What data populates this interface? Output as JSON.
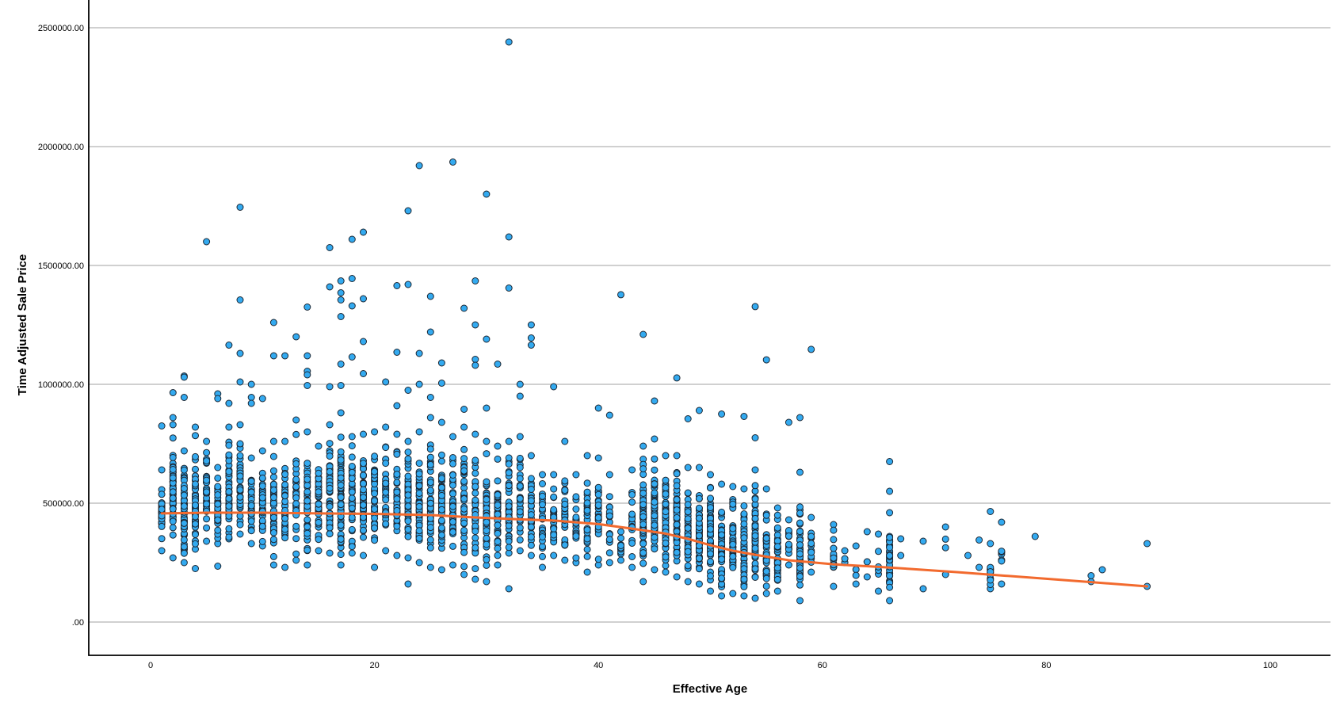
{
  "chart_data": {
    "type": "scatter",
    "title": "",
    "xlabel": "Effective Age",
    "ylabel": "Time Adjusted Sale Price",
    "xlim": [
      -10,
      106
    ],
    "ylim": [
      -140000,
      2620000
    ],
    "x_ticks": [
      0,
      20,
      40,
      60,
      80,
      100
    ],
    "x_tick_labels": [
      "0",
      "20",
      "40",
      "60",
      "80",
      "100"
    ],
    "y_ticks": [
      0,
      500000,
      1000000,
      1500000,
      2000000,
      2500000
    ],
    "y_tick_labels": [
      ".00",
      "500000.00",
      "1000000.00",
      "1500000.00",
      "2000000.00",
      "2500000.00"
    ],
    "grid": {
      "horizontal": true,
      "vertical": false
    },
    "legend": null,
    "colors": {
      "point_fill": "#33aaf0",
      "point_stroke": "#1c2733",
      "fit_line": "#f26a2e",
      "gridline": "#b4b4b4",
      "axis": "#000000"
    },
    "fit_line": {
      "type": "loess",
      "x": [
        1,
        5,
        10,
        15,
        20,
        25,
        29,
        33,
        36,
        40,
        43,
        46,
        48,
        50,
        52,
        54,
        57,
        61,
        65,
        68,
        72,
        76,
        80,
        84,
        89
      ],
      "y": [
        457000,
        460000,
        460000,
        457000,
        455000,
        450000,
        440000,
        432000,
        427000,
        412000,
        393000,
        372000,
        350000,
        323000,
        300000,
        283000,
        260000,
        243000,
        232000,
        223000,
        210000,
        196000,
        182000,
        168000,
        150000
      ]
    },
    "columns": [
      {
        "x": 1,
        "min": 300000,
        "max": 640000,
        "n": 30
      },
      {
        "x": 2,
        "min": 270000,
        "max": 860000,
        "n": 55
      },
      {
        "x": 3,
        "min": 250000,
        "max": 720000,
        "n": 60
      },
      {
        "x": 4,
        "min": 225000,
        "max": 820000,
        "n": 45
      },
      {
        "x": 5,
        "min": 340000,
        "max": 760000,
        "n": 40
      },
      {
        "x": 6,
        "min": 330000,
        "max": 650000,
        "n": 35
      },
      {
        "x": 7,
        "min": 350000,
        "max": 820000,
        "n": 40
      },
      {
        "x": 8,
        "min": 370000,
        "max": 830000,
        "n": 45
      },
      {
        "x": 9,
        "min": 330000,
        "max": 690000,
        "n": 30
      },
      {
        "x": 10,
        "min": 320000,
        "max": 720000,
        "n": 40
      },
      {
        "x": 11,
        "min": 240000,
        "max": 760000,
        "n": 40
      },
      {
        "x": 12,
        "min": 230000,
        "max": 760000,
        "n": 35
      },
      {
        "x": 13,
        "min": 260000,
        "max": 850000,
        "n": 35
      },
      {
        "x": 14,
        "min": 240000,
        "max": 800000,
        "n": 45
      },
      {
        "x": 15,
        "min": 300000,
        "max": 740000,
        "n": 40
      },
      {
        "x": 16,
        "min": 290000,
        "max": 830000,
        "n": 50
      },
      {
        "x": 17,
        "min": 240000,
        "max": 880000,
        "n": 60
      },
      {
        "x": 18,
        "min": 290000,
        "max": 780000,
        "n": 50
      },
      {
        "x": 19,
        "min": 280000,
        "max": 790000,
        "n": 50
      },
      {
        "x": 20,
        "min": 230000,
        "max": 800000,
        "n": 40
      },
      {
        "x": 21,
        "min": 300000,
        "max": 820000,
        "n": 35
      },
      {
        "x": 22,
        "min": 280000,
        "max": 790000,
        "n": 40
      },
      {
        "x": 23,
        "min": 270000,
        "max": 760000,
        "n": 45
      },
      {
        "x": 24,
        "min": 250000,
        "max": 800000,
        "n": 45
      },
      {
        "x": 25,
        "min": 230000,
        "max": 860000,
        "n": 50
      },
      {
        "x": 26,
        "min": 220000,
        "max": 840000,
        "n": 45
      },
      {
        "x": 27,
        "min": 240000,
        "max": 780000,
        "n": 45
      },
      {
        "x": 28,
        "min": 200000,
        "max": 820000,
        "n": 40
      },
      {
        "x": 29,
        "min": 180000,
        "max": 790000,
        "n": 40
      },
      {
        "x": 30,
        "min": 170000,
        "max": 760000,
        "n": 50
      },
      {
        "x": 31,
        "min": 240000,
        "max": 740000,
        "n": 40
      },
      {
        "x": 32,
        "min": 290000,
        "max": 760000,
        "n": 40
      },
      {
        "x": 33,
        "min": 300000,
        "max": 780000,
        "n": 35
      },
      {
        "x": 34,
        "min": 280000,
        "max": 700000,
        "n": 30
      },
      {
        "x": 35,
        "min": 230000,
        "max": 620000,
        "n": 25
      },
      {
        "x": 36,
        "min": 280000,
        "max": 620000,
        "n": 25
      },
      {
        "x": 37,
        "min": 260000,
        "max": 760000,
        "n": 30
      },
      {
        "x": 38,
        "min": 250000,
        "max": 620000,
        "n": 25
      },
      {
        "x": 39,
        "min": 210000,
        "max": 700000,
        "n": 30
      },
      {
        "x": 40,
        "min": 240000,
        "max": 690000,
        "n": 25
      },
      {
        "x": 41,
        "min": 250000,
        "max": 620000,
        "n": 20
      },
      {
        "x": 42,
        "min": 260000,
        "max": 380000,
        "n": 12
      },
      {
        "x": 43,
        "min": 230000,
        "max": 640000,
        "n": 25
      },
      {
        "x": 44,
        "min": 170000,
        "max": 740000,
        "n": 60
      },
      {
        "x": 45,
        "min": 220000,
        "max": 770000,
        "n": 60
      },
      {
        "x": 46,
        "min": 210000,
        "max": 700000,
        "n": 55
      },
      {
        "x": 47,
        "min": 190000,
        "max": 700000,
        "n": 55
      },
      {
        "x": 48,
        "min": 170000,
        "max": 650000,
        "n": 50
      },
      {
        "x": 49,
        "min": 160000,
        "max": 650000,
        "n": 55
      },
      {
        "x": 50,
        "min": 130000,
        "max": 620000,
        "n": 55
      },
      {
        "x": 51,
        "min": 110000,
        "max": 580000,
        "n": 55
      },
      {
        "x": 52,
        "min": 120000,
        "max": 570000,
        "n": 50
      },
      {
        "x": 53,
        "min": 110000,
        "max": 560000,
        "n": 50
      },
      {
        "x": 54,
        "min": 100000,
        "max": 640000,
        "n": 55
      },
      {
        "x": 55,
        "min": 120000,
        "max": 560000,
        "n": 45
      },
      {
        "x": 56,
        "min": 130000,
        "max": 480000,
        "n": 40
      },
      {
        "x": 57,
        "min": 240000,
        "max": 430000,
        "n": 15
      },
      {
        "x": 58,
        "min": 90000,
        "max": 630000,
        "n": 55
      },
      {
        "x": 59,
        "min": 210000,
        "max": 440000,
        "n": 15
      },
      {
        "x": 61,
        "min": 150000,
        "max": 410000,
        "n": 18
      },
      {
        "x": 62,
        "min": 250000,
        "max": 300000,
        "n": 3
      },
      {
        "x": 63,
        "min": 160000,
        "max": 320000,
        "n": 4
      },
      {
        "x": 64,
        "min": 190000,
        "max": 380000,
        "n": 4
      },
      {
        "x": 65,
        "min": 130000,
        "max": 370000,
        "n": 6
      },
      {
        "x": 66,
        "min": 90000,
        "max": 460000,
        "n": 35
      },
      {
        "x": 67,
        "min": 280000,
        "max": 350000,
        "n": 2
      },
      {
        "x": 69,
        "min": 140000,
        "max": 340000,
        "n": 2
      },
      {
        "x": 71,
        "min": 200000,
        "max": 400000,
        "n": 4
      },
      {
        "x": 73,
        "min": 280000,
        "max": 280000,
        "n": 1
      },
      {
        "x": 74,
        "min": 230000,
        "max": 345000,
        "n": 2
      },
      {
        "x": 75,
        "min": 140000,
        "max": 330000,
        "n": 12
      },
      {
        "x": 76,
        "min": 160000,
        "max": 420000,
        "n": 8
      },
      {
        "x": 79,
        "min": 360000,
        "max": 360000,
        "n": 1
      },
      {
        "x": 84,
        "min": 170000,
        "max": 195000,
        "n": 2
      },
      {
        "x": 85,
        "min": 220000,
        "max": 220000,
        "n": 1
      },
      {
        "x": 89,
        "min": 150000,
        "max": 330000,
        "n": 2
      }
    ],
    "outliers": [
      {
        "x": 32,
        "y": 2440000
      },
      {
        "x": 27,
        "y": 1935000
      },
      {
        "x": 24,
        "y": 1920000
      },
      {
        "x": 30,
        "y": 1800000
      },
      {
        "x": 8,
        "y": 1745000
      },
      {
        "x": 23,
        "y": 1730000
      },
      {
        "x": 19,
        "y": 1640000
      },
      {
        "x": 32,
        "y": 1620000
      },
      {
        "x": 18,
        "y": 1610000
      },
      {
        "x": 5,
        "y": 1600000
      },
      {
        "x": 16,
        "y": 1575000
      },
      {
        "x": 17,
        "y": 1435000
      },
      {
        "x": 18,
        "y": 1445000
      },
      {
        "x": 29,
        "y": 1435000
      },
      {
        "x": 22,
        "y": 1415000
      },
      {
        "x": 23,
        "y": 1420000
      },
      {
        "x": 16,
        "y": 1410000
      },
      {
        "x": 32,
        "y": 1405000
      },
      {
        "x": 17,
        "y": 1385000
      },
      {
        "x": 42,
        "y": 1377000
      },
      {
        "x": 25,
        "y": 1370000
      },
      {
        "x": 8,
        "y": 1355000
      },
      {
        "x": 17,
        "y": 1355000
      },
      {
        "x": 19,
        "y": 1360000
      },
      {
        "x": 54,
        "y": 1327000
      },
      {
        "x": 14,
        "y": 1325000
      },
      {
        "x": 18,
        "y": 1330000
      },
      {
        "x": 28,
        "y": 1320000
      },
      {
        "x": 17,
        "y": 1285000
      },
      {
        "x": 11,
        "y": 1260000
      },
      {
        "x": 29,
        "y": 1250000
      },
      {
        "x": 34,
        "y": 1250000
      },
      {
        "x": 25,
        "y": 1220000
      },
      {
        "x": 44,
        "y": 1210000
      },
      {
        "x": 34,
        "y": 1195000
      },
      {
        "x": 13,
        "y": 1200000
      },
      {
        "x": 30,
        "y": 1190000
      },
      {
        "x": 19,
        "y": 1180000
      },
      {
        "x": 7,
        "y": 1165000
      },
      {
        "x": 34,
        "y": 1165000
      },
      {
        "x": 59,
        "y": 1147000
      },
      {
        "x": 22,
        "y": 1135000
      },
      {
        "x": 8,
        "y": 1130000
      },
      {
        "x": 24,
        "y": 1130000
      },
      {
        "x": 11,
        "y": 1120000
      },
      {
        "x": 12,
        "y": 1120000
      },
      {
        "x": 14,
        "y": 1120000
      },
      {
        "x": 18,
        "y": 1115000
      },
      {
        "x": 29,
        "y": 1105000
      },
      {
        "x": 55,
        "y": 1103000
      },
      {
        "x": 26,
        "y": 1090000
      },
      {
        "x": 17,
        "y": 1085000
      },
      {
        "x": 29,
        "y": 1080000
      },
      {
        "x": 31,
        "y": 1085000
      },
      {
        "x": 14,
        "y": 1055000
      },
      {
        "x": 19,
        "y": 1045000
      },
      {
        "x": 14,
        "y": 1040000
      },
      {
        "x": 3,
        "y": 1035000
      },
      {
        "x": 3,
        "y": 1030000
      },
      {
        "x": 47,
        "y": 1027000
      },
      {
        "x": 8,
        "y": 1010000
      },
      {
        "x": 21,
        "y": 1010000
      },
      {
        "x": 26,
        "y": 1005000
      },
      {
        "x": 9,
        "y": 1000000
      },
      {
        "x": 14,
        "y": 995000
      },
      {
        "x": 16,
        "y": 990000
      },
      {
        "x": 17,
        "y": 995000
      },
      {
        "x": 24,
        "y": 1000000
      },
      {
        "x": 33,
        "y": 1000000
      },
      {
        "x": 36,
        "y": 990000
      },
      {
        "x": 23,
        "y": 975000
      },
      {
        "x": 2,
        "y": 965000
      },
      {
        "x": 6,
        "y": 960000
      },
      {
        "x": 9,
        "y": 945000
      },
      {
        "x": 3,
        "y": 945000
      },
      {
        "x": 25,
        "y": 945000
      },
      {
        "x": 33,
        "y": 950000
      },
      {
        "x": 6,
        "y": 940000
      },
      {
        "x": 10,
        "y": 940000
      },
      {
        "x": 45,
        "y": 930000
      },
      {
        "x": 7,
        "y": 920000
      },
      {
        "x": 22,
        "y": 910000
      },
      {
        "x": 9,
        "y": 920000
      },
      {
        "x": 30,
        "y": 900000
      },
      {
        "x": 40,
        "y": 900000
      },
      {
        "x": 28,
        "y": 895000
      },
      {
        "x": 49,
        "y": 890000
      },
      {
        "x": 41,
        "y": 870000
      },
      {
        "x": 51,
        "y": 875000
      },
      {
        "x": 53,
        "y": 865000
      },
      {
        "x": 58,
        "y": 860000
      },
      {
        "x": 48,
        "y": 855000
      },
      {
        "x": 57,
        "y": 840000
      },
      {
        "x": 2,
        "y": 830000
      },
      {
        "x": 1,
        "y": 825000
      },
      {
        "x": 54,
        "y": 775000
      },
      {
        "x": 66,
        "y": 675000
      },
      {
        "x": 66,
        "y": 550000
      },
      {
        "x": 75,
        "y": 465000
      },
      {
        "x": 32,
        "y": 140000
      },
      {
        "x": 23,
        "y": 160000
      },
      {
        "x": 6,
        "y": 235000
      }
    ]
  }
}
